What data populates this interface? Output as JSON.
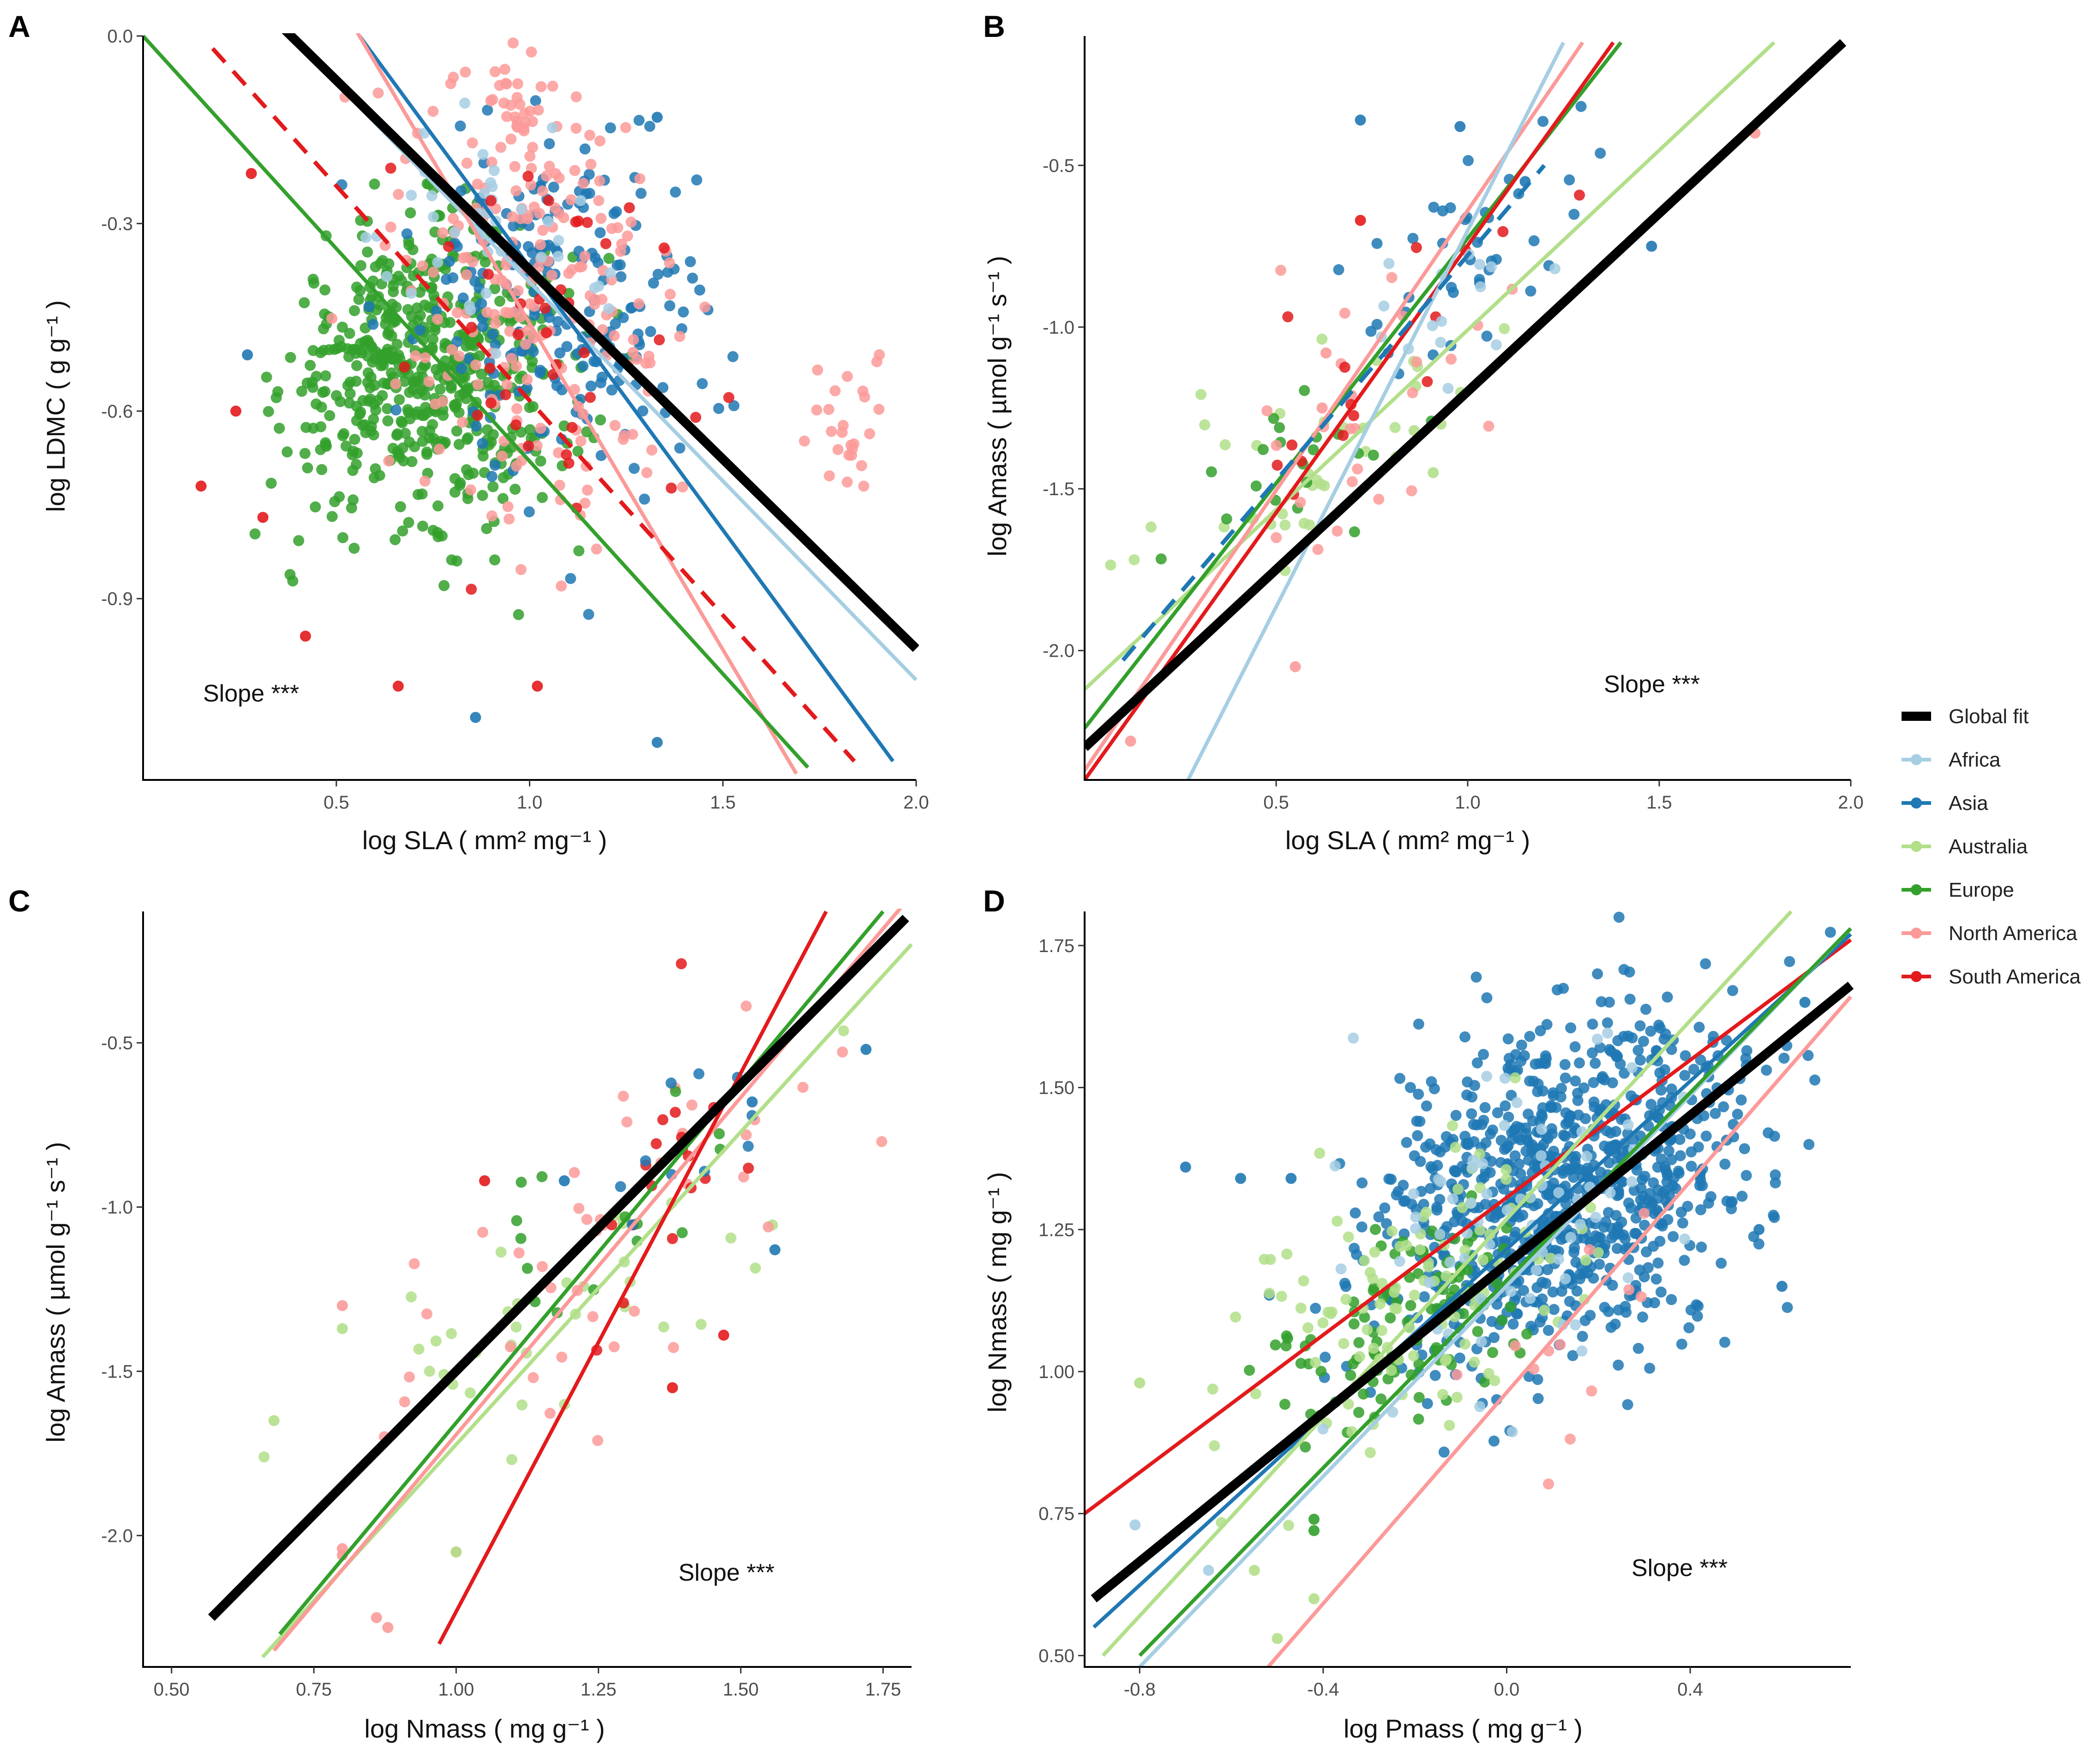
{
  "colors": {
    "Global fit": "#000000",
    "Africa": "#a6cee3",
    "Asia": "#1f78b4",
    "Australia": "#b2df8a",
    "Europe": "#33a02c",
    "North America": "#fb9a99",
    "South America": "#e31a1c"
  },
  "legend": {
    "items": [
      "Global fit",
      "Africa",
      "Asia",
      "Australia",
      "Europe",
      "North America",
      "South America"
    ]
  },
  "chart_data": [
    {
      "panel": "A",
      "type": "scatter",
      "xlabel": "log SLA ( mm² mg⁻¹ )",
      "ylabel": "log LDMC ( g g⁻¹ )",
      "xlim": [
        0.0,
        2.0
      ],
      "ylim": [
        -1.19,
        0.0
      ],
      "xticks": [
        0.5,
        1.0,
        1.5,
        2.0
      ],
      "xtick_labels": [
        "0.5",
        "1.0",
        "1.5",
        "2.0"
      ],
      "yticks": [
        0.0,
        -0.3,
        -0.6,
        -0.9
      ],
      "ytick_labels": [
        "0.0",
        "-0.3",
        "-0.6",
        "-0.9"
      ],
      "annotation": "Slope ***",
      "clouds": [
        {
          "region": "Europe",
          "n": 420,
          "cx": 0.68,
          "cy": -0.52,
          "sx": 0.15,
          "sy": 0.11,
          "rho": 0.2
        },
        {
          "region": "Europe",
          "n": 140,
          "cx": 0.9,
          "cy": -0.58,
          "sx": 0.14,
          "sy": 0.12,
          "rho": 0.1
        },
        {
          "region": "Asia",
          "n": 210,
          "cx": 1.1,
          "cy": -0.42,
          "sx": 0.2,
          "sy": 0.15,
          "rho": -0.1
        },
        {
          "region": "North America",
          "n": 200,
          "cx": 1.03,
          "cy": -0.43,
          "sx": 0.17,
          "sy": 0.18,
          "rho": -0.1
        },
        {
          "region": "North America",
          "n": 40,
          "cx": 0.97,
          "cy": -0.12,
          "sx": 0.05,
          "sy": 0.07,
          "rho": 0
        },
        {
          "region": "North America",
          "n": 25,
          "cx": 1.83,
          "cy": -0.64,
          "sx": 0.07,
          "sy": 0.05,
          "rho": 0
        },
        {
          "region": "Africa",
          "n": 40,
          "cx": 0.9,
          "cy": -0.32,
          "sx": 0.15,
          "sy": 0.1,
          "rho": 0
        },
        {
          "region": "South America",
          "n": 40,
          "cx": 1.05,
          "cy": -0.5,
          "sx": 0.18,
          "sy": 0.17,
          "rho": 0
        }
      ],
      "extra_points": [
        {
          "region": "South America",
          "points": [
            [
              0.15,
              -0.72
            ],
            [
              0.24,
              -0.6
            ],
            [
              0.28,
              -0.22
            ],
            [
              0.31,
              -0.77
            ],
            [
              0.42,
              -0.96
            ],
            [
              0.66,
              -1.04
            ],
            [
              1.02,
              -1.04
            ]
          ]
        },
        {
          "region": "Asia",
          "points": [
            [
              0.27,
              -0.51
            ],
            [
              0.86,
              -1.09
            ],
            [
              1.33,
              -1.13
            ],
            [
              1.33,
              -0.13
            ]
          ]
        }
      ],
      "lines": [
        {
          "region": "Global fit",
          "x": [
            0.35,
            2.0
          ],
          "y": [
            0.02,
            -0.98
          ],
          "dashed": false,
          "width": 20
        },
        {
          "region": "Africa",
          "x": [
            0.35,
            2.0
          ],
          "y": [
            0.02,
            -1.03
          ],
          "dashed": false,
          "width": 8
        },
        {
          "region": "Asia",
          "x": [
            0.56,
            1.94
          ],
          "y": [
            0.0,
            -1.16
          ],
          "dashed": false,
          "width": 8
        },
        {
          "region": "North America",
          "x": [
            0.55,
            1.69
          ],
          "y": [
            0.01,
            -1.18
          ],
          "dashed": false,
          "width": 8
        },
        {
          "region": "Europe",
          "x": [
            0.0,
            1.72
          ],
          "y": [
            0.0,
            -1.17
          ],
          "dashed": false,
          "width": 8
        },
        {
          "region": "South America",
          "x": [
            0.18,
            1.84
          ],
          "y": [
            -0.02,
            -1.16
          ],
          "dashed": true,
          "width": 9
        }
      ]
    },
    {
      "panel": "B",
      "type": "scatter",
      "xlabel": "log SLA ( mm² mg⁻¹ )",
      "ylabel": "log Amass ( µmol g⁻¹ s⁻¹ )",
      "xlim": [
        0.0,
        2.0
      ],
      "ylim": [
        -2.4,
        -0.1
      ],
      "xticks": [
        0.5,
        1.0,
        1.5,
        2.0
      ],
      "xtick_labels": [
        "0.5",
        "1.0",
        "1.5",
        "2.0"
      ],
      "yticks": [
        -0.5,
        -1.0,
        -1.5,
        -2.0
      ],
      "ytick_labels": [
        "-0.5",
        "-1.0",
        "-1.5",
        "-2.0"
      ],
      "annotation": "Slope ***",
      "clouds": [
        {
          "region": "Asia",
          "n": 40,
          "cx": 1.0,
          "cy": -0.75,
          "sx": 0.15,
          "sy": 0.18,
          "rho": 0.5
        },
        {
          "region": "Australia",
          "n": 35,
          "cx": 0.65,
          "cy": -1.35,
          "sx": 0.2,
          "sy": 0.18,
          "rho": 0.6
        },
        {
          "region": "Europe",
          "n": 20,
          "cx": 0.55,
          "cy": -1.45,
          "sx": 0.15,
          "sy": 0.15,
          "rho": 0.6
        },
        {
          "region": "North America",
          "n": 25,
          "cx": 0.7,
          "cy": -1.3,
          "sx": 0.18,
          "sy": 0.25,
          "rho": 0.6
        },
        {
          "region": "South America",
          "n": 15,
          "cx": 0.8,
          "cy": -1.1,
          "sx": 0.2,
          "sy": 0.2,
          "rho": 0.6
        },
        {
          "region": "Africa",
          "n": 15,
          "cx": 0.95,
          "cy": -0.9,
          "sx": 0.15,
          "sy": 0.2,
          "rho": 0.6
        }
      ],
      "extra_points": [
        {
          "region": "Asia",
          "points": [
            [
              0.72,
              -0.36
            ],
            [
              0.98,
              -0.38
            ],
            [
              1.48,
              -0.75
            ],
            [
              1.15,
              -0.55
            ]
          ]
        },
        {
          "region": "North America",
          "points": [
            [
              0.12,
              -2.28
            ],
            [
              0.55,
              -2.05
            ],
            [
              0.62,
              -1.25
            ],
            [
              0.63,
              -1.08
            ],
            [
              1.75,
              -0.4
            ]
          ]
        },
        {
          "region": "Australia",
          "points": [
            [
              0.91,
              -1.45
            ],
            [
              0.86,
              -1.32
            ],
            [
              0.93,
              -1.3
            ]
          ]
        },
        {
          "region": "South America",
          "points": [
            [
              0.72,
              -0.67
            ]
          ]
        }
      ],
      "lines": [
        {
          "region": "Global fit",
          "x": [
            0.0,
            1.98
          ],
          "y": [
            -2.3,
            -0.12
          ],
          "dashed": false,
          "width": 20
        },
        {
          "region": "Australia",
          "x": [
            0.0,
            1.8
          ],
          "y": [
            -2.12,
            -0.12
          ],
          "dashed": false,
          "width": 8
        },
        {
          "region": "Europe",
          "x": [
            0.0,
            1.4
          ],
          "y": [
            -2.24,
            -0.12
          ],
          "dashed": false,
          "width": 8
        },
        {
          "region": "South America",
          "x": [
            0.0,
            1.38
          ],
          "y": [
            -2.4,
            -0.12
          ],
          "dashed": false,
          "width": 8
        },
        {
          "region": "North America",
          "x": [
            0.0,
            1.3
          ],
          "y": [
            -2.37,
            -0.12
          ],
          "dashed": false,
          "width": 8
        },
        {
          "region": "Africa",
          "x": [
            0.27,
            1.25
          ],
          "y": [
            -2.4,
            -0.12
          ],
          "dashed": false,
          "width": 8
        },
        {
          "region": "Asia",
          "x": [
            0.1,
            1.2
          ],
          "y": [
            -2.03,
            -0.5
          ],
          "dashed": true,
          "width": 9
        }
      ]
    },
    {
      "panel": "C",
      "type": "scatter",
      "xlabel": "log Nmass ( mg g⁻¹ )",
      "ylabel": "log Amass ( µmol g⁻¹ s⁻¹ )",
      "xlim": [
        0.45,
        1.8
      ],
      "ylim": [
        -2.4,
        -0.1
      ],
      "xticks": [
        0.5,
        0.75,
        1.0,
        1.25,
        1.5,
        1.75
      ],
      "xtick_labels": [
        "0.50",
        "0.75",
        "1.00",
        "1.25",
        "1.50",
        "1.75"
      ],
      "yticks": [
        -0.5,
        -1.0,
        -1.5,
        -2.0
      ],
      "ytick_labels": [
        "-0.5",
        "-1.0",
        "-1.5",
        "-2.0"
      ],
      "annotation": "Slope ***",
      "clouds": [
        {
          "region": "Australia",
          "n": 35,
          "cx": 1.2,
          "cy": -1.3,
          "sx": 0.2,
          "sy": 0.25,
          "rho": 0.7
        },
        {
          "region": "North America",
          "n": 40,
          "cx": 1.25,
          "cy": -1.1,
          "sx": 0.25,
          "sy": 0.35,
          "rho": 0.75
        },
        {
          "region": "South America",
          "n": 18,
          "cx": 1.4,
          "cy": -0.85,
          "sx": 0.1,
          "sy": 0.25,
          "rho": 0.6
        },
        {
          "region": "Europe",
          "n": 15,
          "cx": 1.3,
          "cy": -1.0,
          "sx": 0.15,
          "sy": 0.25,
          "rho": 0.6
        },
        {
          "region": "Asia",
          "n": 10,
          "cx": 1.4,
          "cy": -0.8,
          "sx": 0.1,
          "sy": 0.15,
          "rho": 0.5
        }
      ],
      "extra_points": [
        {
          "region": "North America",
          "points": [
            [
              0.88,
              -2.28
            ],
            [
              0.86,
              -2.25
            ],
            [
              0.8,
              -2.06
            ],
            [
              0.8,
              -2.04
            ],
            [
              1.0,
              -2.05
            ],
            [
              0.8,
              -1.3
            ]
          ]
        },
        {
          "region": "Asia",
          "points": [
            [
              1.56,
              -1.13
            ],
            [
              1.72,
              -0.52
            ],
            [
              1.52,
              -0.68
            ],
            [
              1.19,
              -0.92
            ]
          ]
        },
        {
          "region": "South America",
          "points": [
            [
              1.38,
              -1.55
            ],
            [
              1.47,
              -1.39
            ],
            [
              1.05,
              -0.92
            ]
          ]
        },
        {
          "region": "Australia",
          "points": [
            [
              0.68,
              -1.65
            ],
            [
              0.8,
              -1.37
            ],
            [
              1.0,
              -2.05
            ]
          ]
        }
      ],
      "lines": [
        {
          "region": "Global fit",
          "x": [
            0.57,
            1.79
          ],
          "y": [
            -2.25,
            -0.12
          ],
          "dashed": false,
          "width": 20
        },
        {
          "region": "Australia",
          "x": [
            0.66,
            1.8
          ],
          "y": [
            -2.37,
            -0.2
          ],
          "dashed": false,
          "width": 8
        },
        {
          "region": "Europe",
          "x": [
            0.69,
            1.75
          ],
          "y": [
            -2.3,
            -0.1
          ],
          "dashed": false,
          "width": 8
        },
        {
          "region": "North America",
          "x": [
            0.68,
            1.8
          ],
          "y": [
            -2.35,
            -0.05
          ],
          "dashed": false,
          "width": 8
        },
        {
          "region": "South America",
          "x": [
            0.97,
            1.65
          ],
          "y": [
            -2.33,
            -0.1
          ],
          "dashed": false,
          "width": 8
        }
      ]
    },
    {
      "panel": "D",
      "type": "scatter",
      "xlabel": "log Pmass ( mg g⁻¹ )",
      "ylabel": "log Nmass ( mg g⁻¹ )",
      "xlim": [
        -0.92,
        0.75
      ],
      "ylim": [
        0.48,
        1.81
      ],
      "xticks": [
        -0.8,
        -0.4,
        0.0,
        0.4
      ],
      "xtick_labels": [
        "-0.8",
        "-0.4",
        "0.0",
        "0.4"
      ],
      "yticks": [
        0.5,
        0.75,
        1.0,
        1.25,
        1.5,
        1.75
      ],
      "ytick_labels": [
        "0.50",
        "0.75",
        "1.00",
        "1.25",
        "1.50",
        "1.75"
      ],
      "annotation": "Slope ***",
      "clouds": [
        {
          "region": "Asia",
          "n": 900,
          "cx": 0.12,
          "cy": 1.33,
          "sx": 0.2,
          "sy": 0.16,
          "rho": 0.35
        },
        {
          "region": "Europe",
          "n": 110,
          "cx": -0.22,
          "cy": 1.1,
          "sx": 0.13,
          "sy": 0.1,
          "rho": 0.4
        },
        {
          "region": "Australia",
          "n": 110,
          "cx": -0.2,
          "cy": 1.13,
          "sx": 0.17,
          "sy": 0.14,
          "rho": 0.4
        },
        {
          "region": "Africa",
          "n": 70,
          "cx": 0.02,
          "cy": 1.28,
          "sx": 0.17,
          "sy": 0.16,
          "rho": 0.4
        },
        {
          "region": "North America",
          "n": 12,
          "cx": 0.05,
          "cy": 1.0,
          "sx": 0.15,
          "sy": 0.12,
          "rho": 0.4
        }
      ],
      "extra_points": [
        {
          "region": "Asia",
          "points": [
            [
              -0.7,
              1.36
            ],
            [
              -0.58,
              1.34
            ],
            [
              -0.47,
              1.34
            ],
            [
              0.6,
              1.15
            ],
            [
              0.55,
              1.25
            ],
            [
              0.65,
              1.65
            ]
          ]
        },
        {
          "region": "Australia",
          "points": [
            [
              -0.8,
              0.98
            ],
            [
              -0.5,
              0.53
            ],
            [
              -0.42,
              0.6
            ],
            [
              -0.55,
              0.65
            ]
          ]
        },
        {
          "region": "Africa",
          "points": [
            [
              -0.81,
              0.73
            ],
            [
              -0.65,
              0.65
            ]
          ]
        },
        {
          "region": "Europe",
          "points": [
            [
              -0.42,
              0.72
            ],
            [
              -0.42,
              0.74
            ]
          ]
        }
      ],
      "lines": [
        {
          "region": "Global fit",
          "x": [
            -0.9,
            0.75
          ],
          "y": [
            0.6,
            1.68
          ],
          "dashed": false,
          "width": 20
        },
        {
          "region": "South America",
          "x": [
            -0.92,
            0.75
          ],
          "y": [
            0.75,
            1.76
          ],
          "dashed": false,
          "width": 8
        },
        {
          "region": "Asia",
          "x": [
            -0.9,
            0.75
          ],
          "y": [
            0.55,
            1.77
          ],
          "dashed": false,
          "width": 8
        },
        {
          "region": "Africa",
          "x": [
            -0.8,
            0.75
          ],
          "y": [
            0.48,
            1.78
          ],
          "dashed": false,
          "width": 8
        },
        {
          "region": "Europe",
          "x": [
            -0.8,
            0.75
          ],
          "y": [
            0.5,
            1.78
          ],
          "dashed": false,
          "width": 8
        },
        {
          "region": "Australia",
          "x": [
            -0.88,
            0.62
          ],
          "y": [
            0.5,
            1.81
          ],
          "dashed": false,
          "width": 8
        },
        {
          "region": "North America",
          "x": [
            -0.52,
            0.75
          ],
          "y": [
            0.48,
            1.66
          ],
          "dashed": false,
          "width": 8
        }
      ]
    }
  ]
}
